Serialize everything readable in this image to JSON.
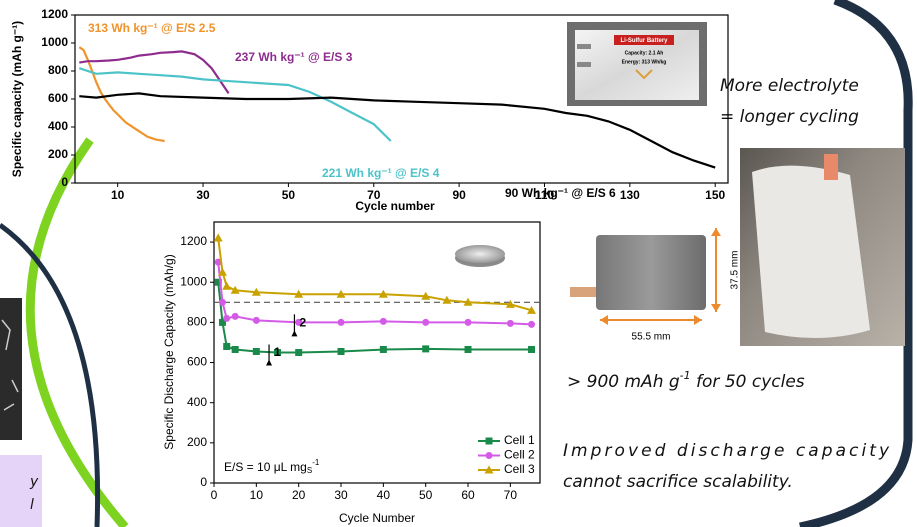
{
  "chart_data": [
    {
      "type": "line",
      "x_label": "Cycle number",
      "y_label": "Specific capacity (mAh g⁻¹)",
      "xlim": [
        0,
        153
      ],
      "ylim": [
        0,
        1200
      ],
      "xticks": [
        10,
        30,
        50,
        70,
        90,
        110,
        130,
        150
      ],
      "yticks": [
        0,
        200,
        400,
        600,
        800,
        1000,
        1200
      ],
      "series": [
        {
          "name": "313 Wh kg⁻¹ @ E/S 2.5",
          "color": "#f0932b",
          "x": [
            1,
            2,
            3,
            4,
            5,
            6,
            7,
            8,
            9,
            10,
            11,
            12,
            13,
            14,
            15,
            16,
            17,
            18,
            19,
            20,
            21
          ],
          "values": [
            970,
            950,
            880,
            800,
            720,
            650,
            600,
            560,
            520,
            490,
            460,
            430,
            410,
            390,
            370,
            350,
            330,
            320,
            310,
            305,
            300
          ]
        },
        {
          "name": "237 Wh kg⁻¹ @ E/S 3",
          "color": "#8e2c8e",
          "x": [
            1,
            3,
            5,
            8,
            10,
            13,
            15,
            18,
            20,
            23,
            25,
            28,
            30,
            32,
            34,
            36
          ],
          "values": [
            860,
            870,
            870,
            875,
            880,
            895,
            910,
            920,
            930,
            935,
            940,
            920,
            880,
            820,
            730,
            640
          ]
        },
        {
          "name": "221 Wh kg⁻¹ @ E/S 4",
          "color": "#4cc3c8",
          "x": [
            1,
            5,
            10,
            15,
            20,
            25,
            30,
            35,
            40,
            45,
            50,
            55,
            60,
            65,
            70,
            74
          ],
          "values": [
            820,
            780,
            790,
            780,
            770,
            760,
            740,
            730,
            720,
            710,
            700,
            650,
            580,
            500,
            420,
            300
          ]
        },
        {
          "name": "90 Wh kg⁻¹ @ E/S 6",
          "color": "#000000",
          "x": [
            1,
            5,
            10,
            15,
            20,
            30,
            40,
            50,
            60,
            70,
            80,
            90,
            100,
            110,
            115,
            120,
            125,
            130,
            135,
            140,
            145,
            150
          ],
          "values": [
            620,
            610,
            630,
            640,
            620,
            610,
            600,
            600,
            610,
            590,
            580,
            570,
            560,
            530,
            500,
            480,
            440,
            380,
            300,
            220,
            160,
            110
          ]
        }
      ]
    },
    {
      "type": "line",
      "x_label": "Cycle Number",
      "y_label": "Specific Discharge Capacity (mAh/g)",
      "xlim": [
        0,
        77
      ],
      "ylim": [
        0,
        1300
      ],
      "xticks": [
        0,
        10,
        20,
        30,
        40,
        50,
        60,
        70
      ],
      "yticks": [
        0,
        200,
        400,
        600,
        800,
        1000,
        1200
      ],
      "reference_line": 900,
      "annotations": [
        "1",
        "2"
      ],
      "es_label": [
        "E/S = 10 μL mg",
        "S",
        "-1"
      ],
      "legend": "lower right",
      "series": [
        {
          "name": "Cell 1",
          "color": "#1a8a4a",
          "marker": "square",
          "x": [
            1,
            2,
            3,
            5,
            10,
            15,
            20,
            30,
            40,
            50,
            60,
            75
          ],
          "values": [
            1000,
            800,
            680,
            665,
            655,
            650,
            650,
            655,
            665,
            668,
            665,
            665
          ]
        },
        {
          "name": "Cell 2",
          "color": "#d35be8",
          "marker": "circle",
          "x": [
            1,
            2,
            3,
            5,
            10,
            20,
            30,
            40,
            50,
            60,
            70,
            75
          ],
          "values": [
            1100,
            900,
            820,
            830,
            810,
            800,
            800,
            805,
            800,
            800,
            795,
            790
          ]
        },
        {
          "name": "Cell 3",
          "color": "#c9a200",
          "marker": "triangle",
          "x": [
            1,
            2,
            3,
            5,
            10,
            20,
            30,
            40,
            50,
            55,
            60,
            70,
            75
          ],
          "values": [
            1220,
            1050,
            980,
            960,
            950,
            940,
            940,
            940,
            930,
            910,
            900,
            890,
            860
          ]
        }
      ]
    }
  ],
  "callouts": {
    "electrolyte": [
      "More electrolyte",
      "= longer cycling"
    ],
    "cycles": [
      "> 900 mAh g",
      "-1",
      " for 50 cycles"
    ],
    "scalability": [
      "Improved discharge capacity",
      "cannot sacrifice scalability."
    ]
  },
  "battery_label": [
    "Li-Sulfur Battery",
    "Capacity: 2.1 Ah",
    "Energy: 313 Wh/kg"
  ],
  "dimensions": [
    "55.5 mm",
    "37.5 mm"
  ],
  "side_note": [
    "y",
    "l"
  ]
}
